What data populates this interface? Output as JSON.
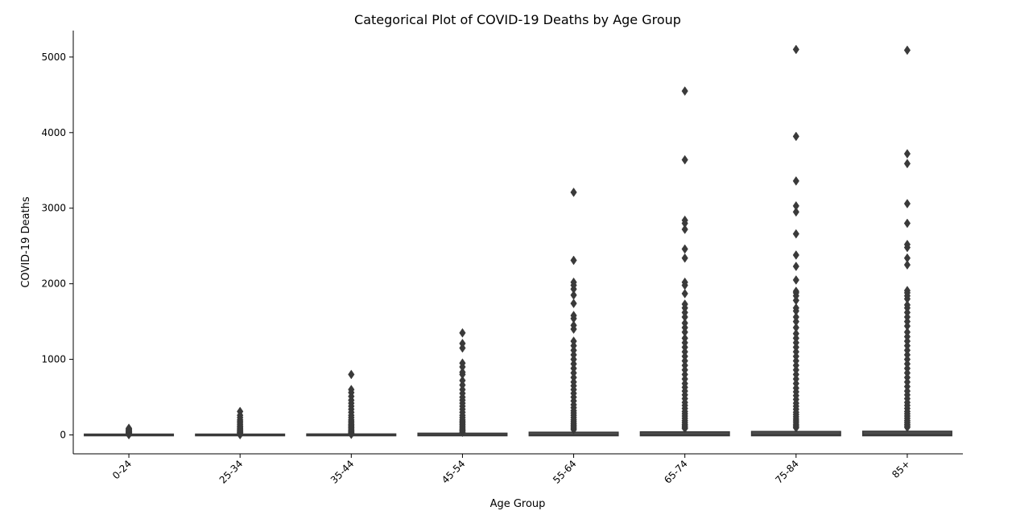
{
  "chart_data": {
    "type": "box",
    "title": "Categorical Plot of COVID-19 Deaths by Age Group",
    "xlabel": "Age Group",
    "ylabel": "COVID-19 Deaths",
    "ylim": [
      -250,
      5350
    ],
    "yticks": [
      0,
      1000,
      2000,
      3000,
      4000,
      5000
    ],
    "grid": false,
    "box_color": "#3a3a3a",
    "categories": [
      "0-24",
      "25-34",
      "35-44",
      "45-54",
      "55-64",
      "65-74",
      "75-84",
      "85+"
    ],
    "boxes": [
      {
        "category": "0-24",
        "q1": 0,
        "median": 0,
        "q3": 0,
        "whisker_low": 0,
        "whisker_high": 0,
        "outliers": [
          3,
          8,
          12,
          16,
          20,
          25,
          30,
          35,
          40,
          45,
          52,
          58,
          65,
          72,
          80,
          88
        ]
      },
      {
        "category": "25-34",
        "q1": 0,
        "median": 0,
        "q3": 0,
        "whisker_low": 0,
        "whisker_high": 0,
        "outliers": [
          3,
          8,
          14,
          20,
          28,
          36,
          45,
          55,
          65,
          78,
          90,
          105,
          120,
          140,
          160,
          180,
          200,
          230,
          260,
          310
        ]
      },
      {
        "category": "35-44",
        "q1": 0,
        "median": 0,
        "q3": 2,
        "whisker_low": 0,
        "whisker_high": 5,
        "outliers": [
          8,
          15,
          25,
          35,
          45,
          55,
          65,
          80,
          95,
          110,
          125,
          140,
          160,
          180,
          200,
          230,
          260,
          300,
          340,
          380,
          420,
          460,
          510,
          560,
          600,
          800
        ]
      },
      {
        "category": "45-54",
        "q1": 0,
        "median": 0,
        "q3": 12,
        "whisker_low": 0,
        "whisker_high": 30,
        "outliers": [
          35,
          50,
          65,
          80,
          100,
          120,
          140,
          160,
          180,
          200,
          230,
          260,
          300,
          340,
          380,
          420,
          460,
          500,
          550,
          600,
          660,
          720,
          800,
          830,
          900,
          950,
          1150,
          1210,
          1350
        ]
      },
      {
        "category": "55-64",
        "q1": 0,
        "median": 0,
        "q3": 25,
        "whisker_low": 0,
        "whisker_high": 60,
        "outliers": [
          70,
          90,
          110,
          130,
          150,
          175,
          200,
          230,
          260,
          290,
          320,
          360,
          400,
          450,
          500,
          550,
          600,
          650,
          700,
          760,
          820,
          880,
          940,
          1000,
          1060,
          1120,
          1180,
          1240,
          1400,
          1450,
          1540,
          1580,
          1740,
          1850,
          1930,
          1980,
          2020,
          2310,
          3210
        ]
      },
      {
        "category": "65-74",
        "q1": 0,
        "median": 2,
        "q3": 30,
        "whisker_low": 0,
        "whisker_high": 75,
        "outliers": [
          85,
          100,
          120,
          140,
          165,
          190,
          220,
          250,
          280,
          310,
          350,
          390,
          430,
          480,
          530,
          580,
          630,
          680,
          740,
          800,
          860,
          920,
          980,
          1040,
          1100,
          1160,
          1220,
          1280,
          1360,
          1420,
          1480,
          1560,
          1620,
          1680,
          1730,
          1870,
          1980,
          2020,
          2340,
          2460,
          2720,
          2800,
          2840,
          3640,
          4550
        ]
      },
      {
        "category": "75-84",
        "q1": 0,
        "median": 3,
        "q3": 35,
        "whisker_low": 0,
        "whisker_high": 85,
        "outliers": [
          95,
          115,
          135,
          160,
          185,
          210,
          240,
          270,
          300,
          340,
          380,
          420,
          470,
          520,
          570,
          620,
          680,
          740,
          800,
          860,
          920,
          980,
          1040,
          1100,
          1160,
          1220,
          1280,
          1340,
          1420,
          1500,
          1560,
          1640,
          1680,
          1780,
          1840,
          1880,
          1900,
          2050,
          2230,
          2380,
          2660,
          2950,
          3030,
          3360,
          3950,
          5100
        ]
      },
      {
        "category": "85+",
        "q1": 0,
        "median": 3,
        "q3": 38,
        "whisker_low": 0,
        "whisker_high": 90,
        "outliers": [
          100,
          120,
          140,
          165,
          190,
          220,
          250,
          280,
          310,
          350,
          390,
          430,
          480,
          530,
          580,
          640,
          700,
          760,
          820,
          880,
          940,
          1000,
          1060,
          1120,
          1180,
          1240,
          1300,
          1360,
          1440,
          1500,
          1560,
          1620,
          1680,
          1720,
          1800,
          1840,
          1880,
          1910,
          2250,
          2340,
          2480,
          2520,
          2800,
          3060,
          3590,
          3720,
          5090
        ]
      }
    ]
  }
}
